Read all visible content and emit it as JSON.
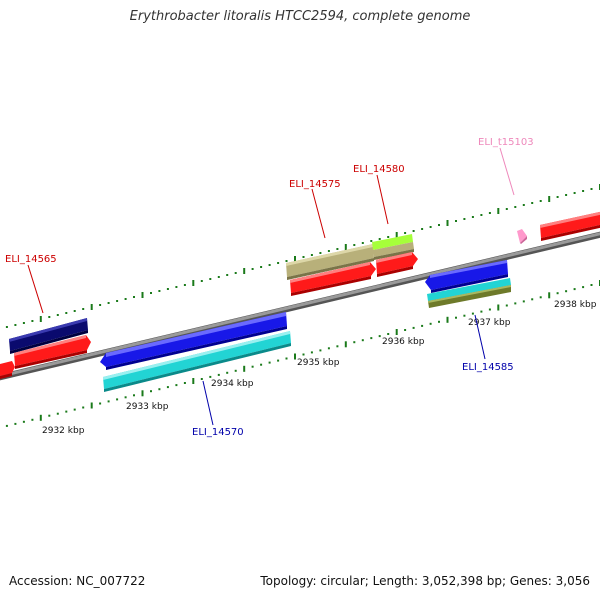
{
  "title": "Erythrobacter litoralis HTCC2594, complete genome",
  "footer": {
    "accession": "Accession: NC_007722",
    "topology": "Topology: circular; Length: 3,052,398 bp; Genes: 3,056"
  },
  "tick_labels": {
    "kbp_2932": "2932 kbp",
    "kbp_2933": "2933 kbp",
    "kbp_2934": "2934 kbp",
    "kbp_2935": "2935 kbp",
    "kbp_2936": "2936 kbp",
    "kbp_2937": "2937 kbp",
    "kbp_2938": "2938 kbp"
  },
  "genes": {
    "eli_14565": "ELI_14565",
    "eli_14570": "ELI_14570",
    "eli_14575": "ELI_14575",
    "eli_14580": "ELI_14580",
    "eli_14585": "ELI_14585",
    "eli_t15103": "ELI_t15103"
  },
  "colors": {
    "forward_label": "#cc0000",
    "reverse_label": "#0000aa",
    "trna_label": "#ee88bb",
    "backbone": "#8a8a8a",
    "tick": "#1a7a1a",
    "red_feature": "#ff1a1a",
    "navy_feature": "#0a0a6e",
    "blue_feature": "#1818e8",
    "cyan_feature": "#22d4d4",
    "tan_feature": "#b8b07a",
    "lime_feature": "#a6ff3a",
    "olive_feature": "#6e7a2a",
    "pink_feature": "#ff99cc"
  }
}
